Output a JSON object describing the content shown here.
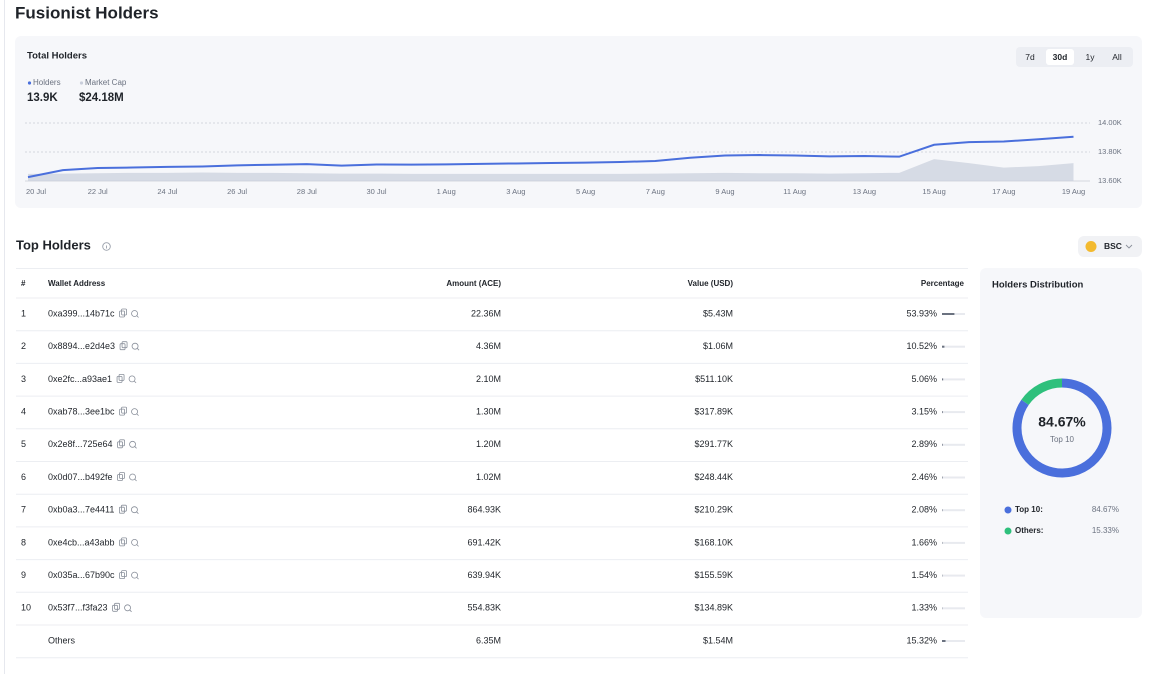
{
  "header": {
    "title": "Fusionist Holders"
  },
  "total_holders": {
    "title": "Total Holders",
    "ranges": [
      {
        "label": "7d",
        "selected": false
      },
      {
        "label": "30d",
        "selected": true
      },
      {
        "label": "1y",
        "selected": false
      },
      {
        "label": "All",
        "selected": false
      }
    ],
    "stats": [
      "13.9K",
      "$24.18M"
    ],
    "chart_data": {
      "type": "line",
      "x": [
        "20 Jul",
        null,
        "22 Jul",
        null,
        "24 Jul",
        null,
        "26 Jul",
        null,
        "28 Jul",
        null,
        "30 Jul",
        null,
        "1 Aug",
        null,
        "3 Aug",
        null,
        "5 Aug",
        null,
        "7 Aug",
        null,
        "9 Aug",
        null,
        "11 Aug",
        null,
        "13 Aug",
        null,
        "15 Aug",
        null,
        "17 Aug",
        null,
        "19 Aug"
      ],
      "series": [
        {
          "name": "Holders",
          "color": "#4a6fdc",
          "values": [
            13627,
            13675,
            13690,
            13693,
            13697,
            13700,
            13708,
            13712,
            13716,
            13706,
            13714,
            13713,
            13715,
            13718,
            13721,
            13724,
            13727,
            13731,
            13738,
            13760,
            13776,
            13779,
            13776,
            13770,
            13772,
            13768,
            13850,
            13868,
            13872,
            13888,
            13905
          ]
        },
        {
          "name": "Market Cap",
          "color": "#c9cedb",
          "type": "area",
          "axis": "y2",
          "values": [
            9.5,
            10,
            10.5,
            11,
            11,
            11.5,
            11,
            11,
            10.5,
            10,
            10,
            9.5,
            9.5,
            9.5,
            9.5,
            9.5,
            9.5,
            9.5,
            10,
            10.5,
            11,
            10.5,
            10.5,
            10,
            10.5,
            11,
            29.5,
            24,
            18,
            20,
            24
          ]
        }
      ],
      "ylim": [
        13600,
        14000
      ],
      "yticks": [
        {
          "value": 13600,
          "label": "13.60K"
        },
        {
          "value": 13800,
          "label": "13.80K"
        },
        {
          "value": 14000,
          "label": "14.00K"
        }
      ],
      "y2lim": [
        0,
        78
      ],
      "grid": true
    }
  },
  "top_holders": {
    "title": "Top Holders",
    "chain": "BSC",
    "columns": [
      "#",
      "Wallet Address",
      "Amount (ACE)",
      "Value (USD)",
      "Percentage"
    ],
    "rows": [
      {
        "rank": "1",
        "wallet": "0xa399...14b71c",
        "amount": "22.36M",
        "value": "$5.43M",
        "percentage": 53.93,
        "percentage_label": "53.93%"
      },
      {
        "rank": "2",
        "wallet": "0x8894...e2d4e3",
        "amount": "4.36M",
        "value": "$1.06M",
        "percentage": 10.52,
        "percentage_label": "10.52%"
      },
      {
        "rank": "3",
        "wallet": "0xe2fc...a93ae1",
        "amount": "2.10M",
        "value": "$511.10K",
        "percentage": 5.06,
        "percentage_label": "5.06%"
      },
      {
        "rank": "4",
        "wallet": "0xab78...3ee1bc",
        "amount": "1.30M",
        "value": "$317.89K",
        "percentage": 3.15,
        "percentage_label": "3.15%"
      },
      {
        "rank": "5",
        "wallet": "0x2e8f...725e64",
        "amount": "1.20M",
        "value": "$291.77K",
        "percentage": 2.89,
        "percentage_label": "2.89%"
      },
      {
        "rank": "6",
        "wallet": "0x0d07...b492fe",
        "amount": "1.02M",
        "value": "$248.44K",
        "percentage": 2.46,
        "percentage_label": "2.46%"
      },
      {
        "rank": "7",
        "wallet": "0xb0a3...7e4411",
        "amount": "864.93K",
        "value": "$210.29K",
        "percentage": 2.08,
        "percentage_label": "2.08%"
      },
      {
        "rank": "8",
        "wallet": "0xe4cb...a43abb",
        "amount": "691.42K",
        "value": "$168.10K",
        "percentage": 1.66,
        "percentage_label": "1.66%"
      },
      {
        "rank": "9",
        "wallet": "0x035a...67b90c",
        "amount": "639.94K",
        "value": "$155.59K",
        "percentage": 1.54,
        "percentage_label": "1.54%"
      },
      {
        "rank": "10",
        "wallet": "0x53f7...f3fa23",
        "amount": "554.83K",
        "value": "$134.89K",
        "percentage": 1.33,
        "percentage_label": "1.33%"
      },
      {
        "wallet": "Others",
        "amount": "6.35M",
        "value": "$1.54M",
        "percentage": 15.32,
        "percentage_label": "15.32%"
      }
    ]
  },
  "distribution": {
    "title": "Holders Distribution",
    "center_label": "Top 10",
    "chart_data": {
      "type": "donut",
      "series": [
        {
          "name": "Top 10:",
          "value": 84.67,
          "value_label": "84.67%",
          "color": "#4a6fdc"
        },
        {
          "name": "Others:",
          "value": 15.33,
          "value_label": "15.33%",
          "color": "#2ec07c"
        }
      ]
    }
  }
}
